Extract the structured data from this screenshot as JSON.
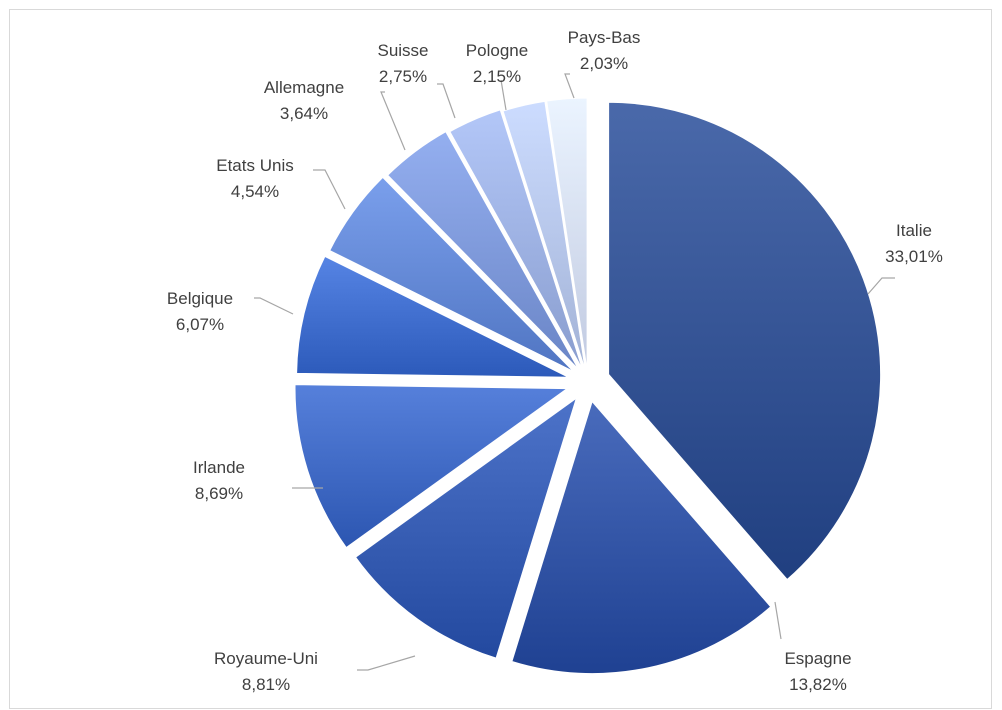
{
  "chart_data": {
    "type": "pie",
    "title": "",
    "start_angle_deg": 0,
    "direction": "clockwise",
    "exploded": true,
    "legend": "none",
    "data_labels": "outside, category and percentage",
    "slices": [
      {
        "name": "Italie",
        "value": 33.01,
        "label": "33,01%",
        "color": "#2e4d8e"
      },
      {
        "name": "Espagne",
        "value": 13.82,
        "label": "13,82%",
        "color": "#2d4fa0"
      },
      {
        "name": "Royaume-Uni",
        "value": 8.81,
        "label": "8,81%",
        "color": "#3157ad"
      },
      {
        "name": "Irlande",
        "value": 8.69,
        "label": "8,69%",
        "color": "#3a64bf"
      },
      {
        "name": "Belgique",
        "value": 6.07,
        "label": "6,07%",
        "color": "#3a68c8"
      },
      {
        "name": "Etats Unis",
        "value": 4.54,
        "label": "4,54%",
        "color": "#5e83d0"
      },
      {
        "name": "Allemagne",
        "value": 3.64,
        "label": "3,64%",
        "color": "#7893d4"
      },
      {
        "name": "Suisse",
        "value": 2.75,
        "label": "2,75%",
        "color": "#97abdc"
      },
      {
        "name": "Pologne",
        "value": 2.15,
        "label": "2,15%",
        "color": "#b0c0e4"
      },
      {
        "name": "Pays-Bas",
        "value": 2.03,
        "label": "2,03%",
        "color": "#cfd8ef"
      }
    ]
  }
}
